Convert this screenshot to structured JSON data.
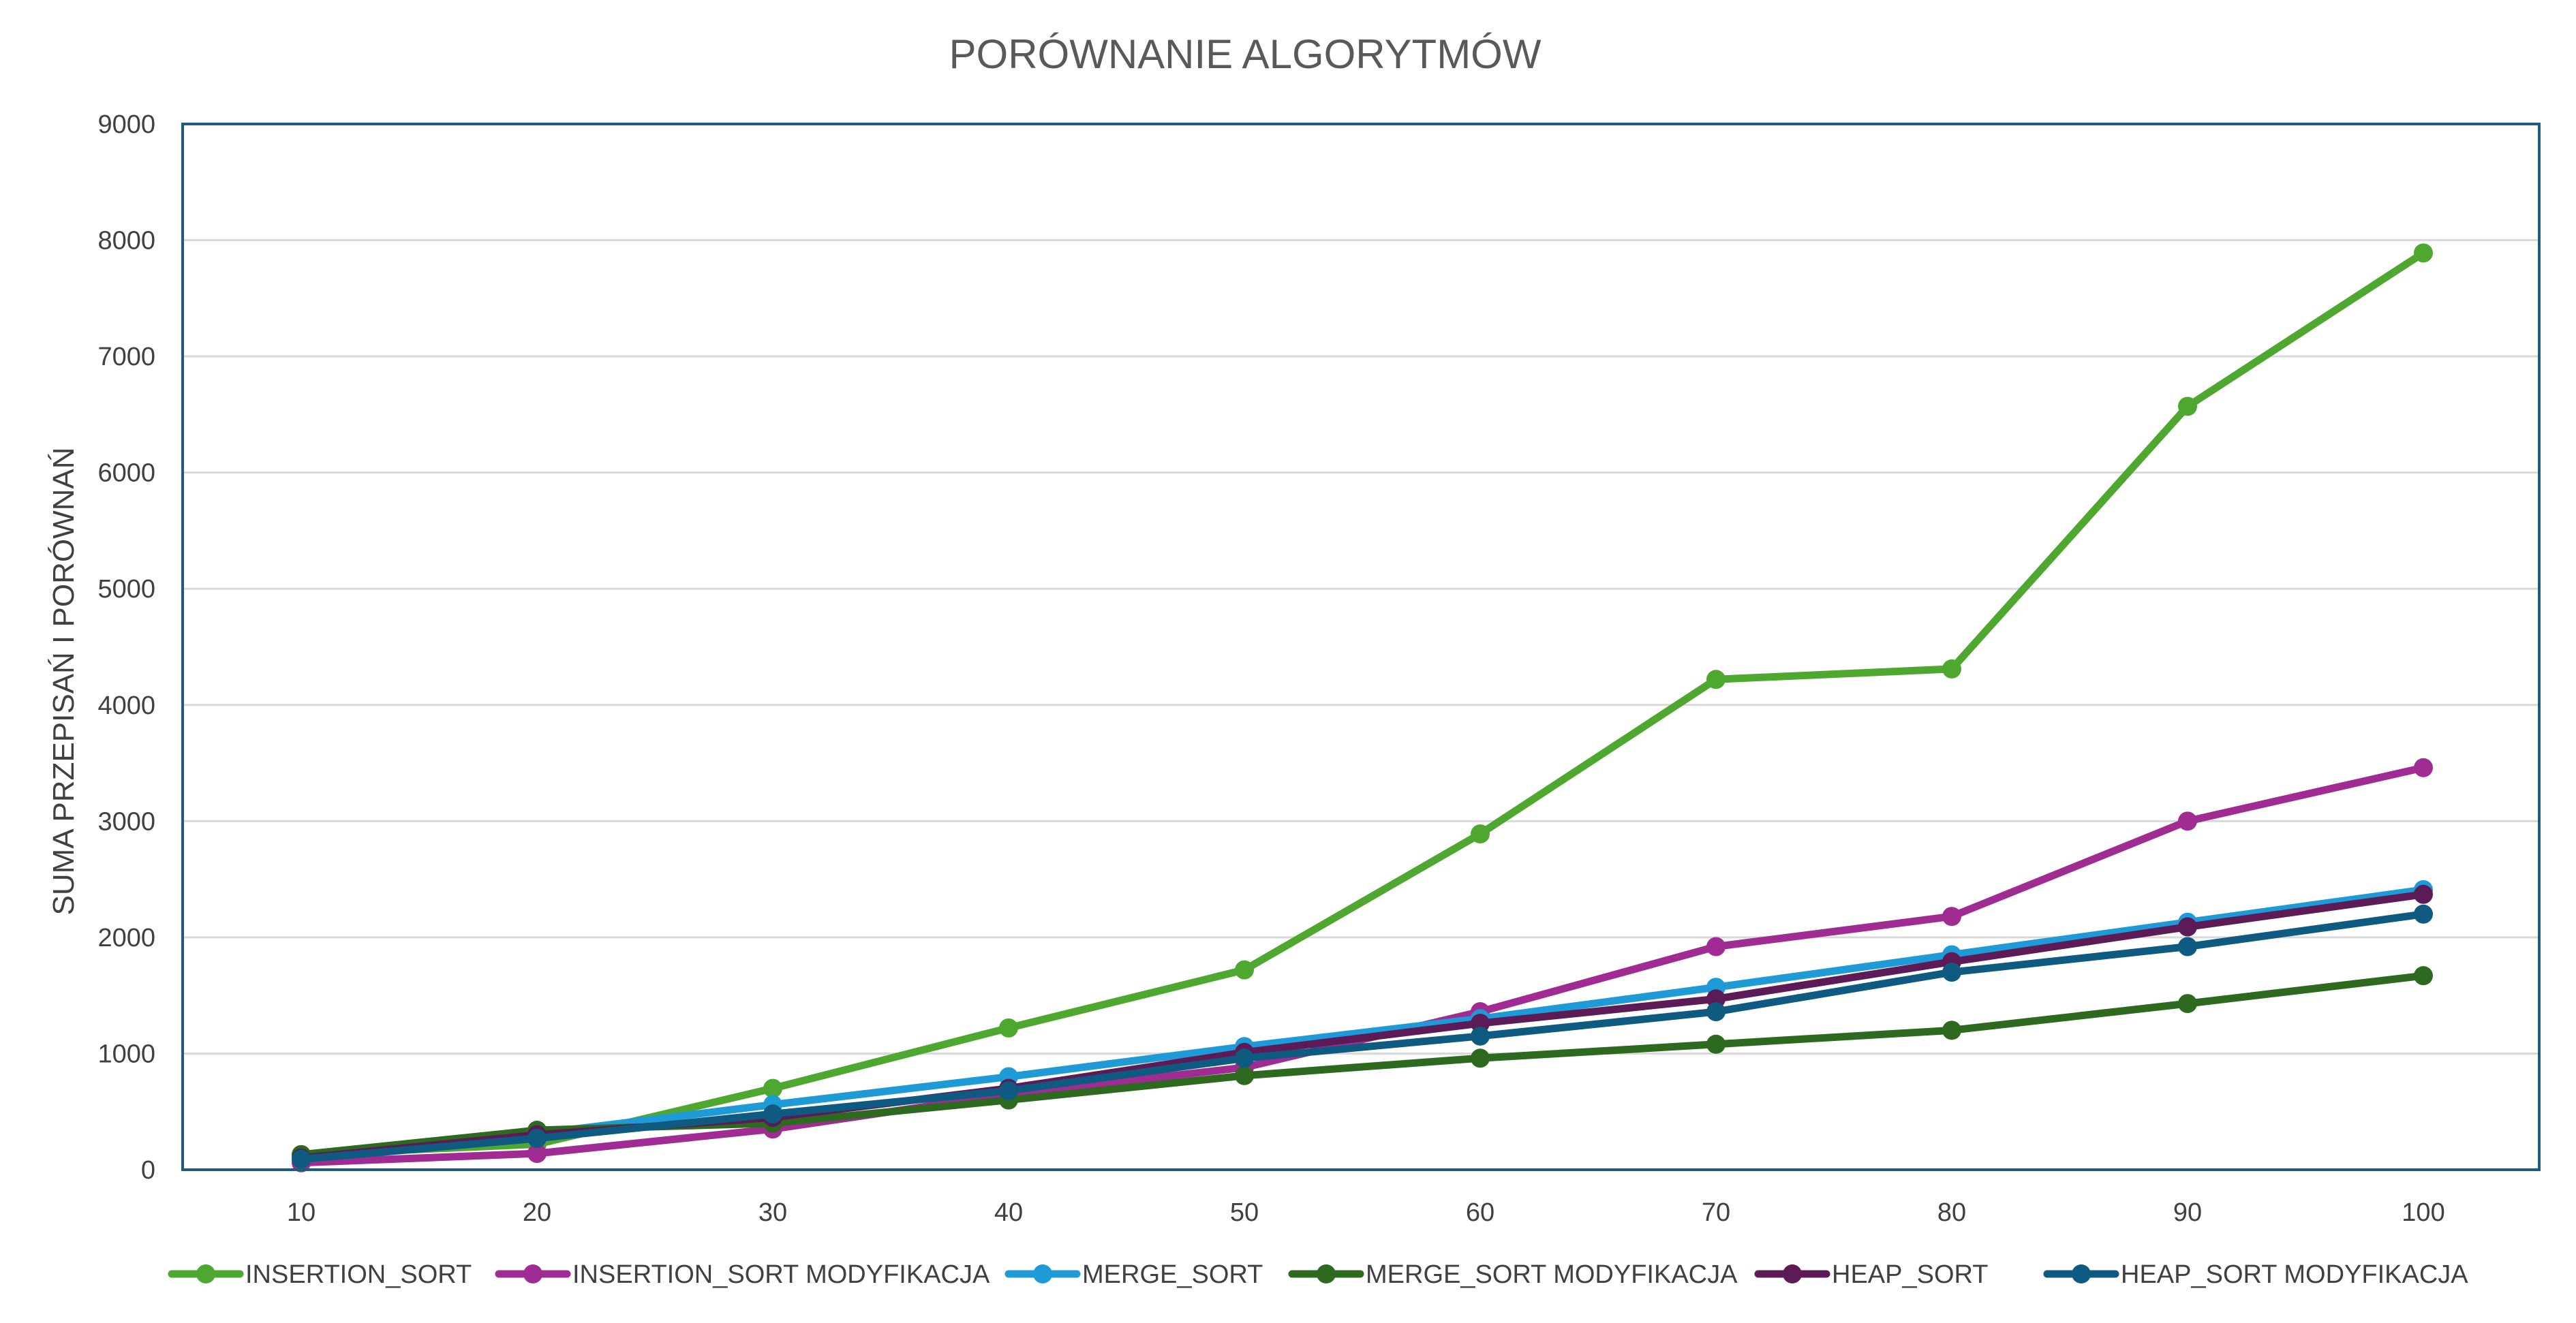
{
  "chart_data": {
    "type": "line",
    "title": "PORÓWNANIE ALGORYTMÓW",
    "xlabel": "",
    "ylabel": "SUMA PRZEPISAŃ I PORÓWNAŃ",
    "x": [
      10,
      20,
      30,
      40,
      50,
      60,
      70,
      80,
      90,
      100
    ],
    "x_tick_labels": [
      "10",
      "20",
      "30",
      "40",
      "50",
      "60",
      "70",
      "80",
      "90",
      "100"
    ],
    "ylim": [
      0,
      9000
    ],
    "y_ticks": [
      0,
      1000,
      2000,
      3000,
      4000,
      5000,
      6000,
      7000,
      8000,
      9000
    ],
    "y_tick_labels": [
      "0",
      "1000",
      "2000",
      "3000",
      "4000",
      "5000",
      "6000",
      "7000",
      "8000",
      "9000"
    ],
    "grid": true,
    "legend_position": "bottom",
    "series": [
      {
        "name": "INSERTION_SORT",
        "color": "#4ea72e",
        "values": [
          130,
          220,
          700,
          1220,
          1720,
          2890,
          4220,
          4310,
          6570,
          7890
        ]
      },
      {
        "name": "INSERTION_SORT MODYFIKACJA",
        "color": "#a02b93",
        "values": [
          60,
          140,
          350,
          650,
          880,
          1360,
          1920,
          2180,
          3000,
          3460
        ]
      },
      {
        "name": "MERGE_SORT",
        "color": "#1e9bd7",
        "values": [
          120,
          310,
          560,
          800,
          1060,
          1300,
          1570,
          1850,
          2130,
          2410
        ]
      },
      {
        "name": "MERGE_SORT MODYFIKACJA",
        "color": "#2d6a1f",
        "values": [
          130,
          340,
          400,
          600,
          810,
          960,
          1080,
          1200,
          1430,
          1670
        ]
      },
      {
        "name": "HEAP_SORT",
        "color": "#5c1a56",
        "values": [
          100,
          300,
          450,
          700,
          1010,
          1260,
          1470,
          1790,
          2090,
          2370
        ]
      },
      {
        "name": "HEAP_SORT MODYFIKACJA",
        "color": "#0f5a80",
        "values": [
          90,
          270,
          480,
          680,
          960,
          1150,
          1360,
          1700,
          1920,
          2200
        ]
      }
    ]
  }
}
